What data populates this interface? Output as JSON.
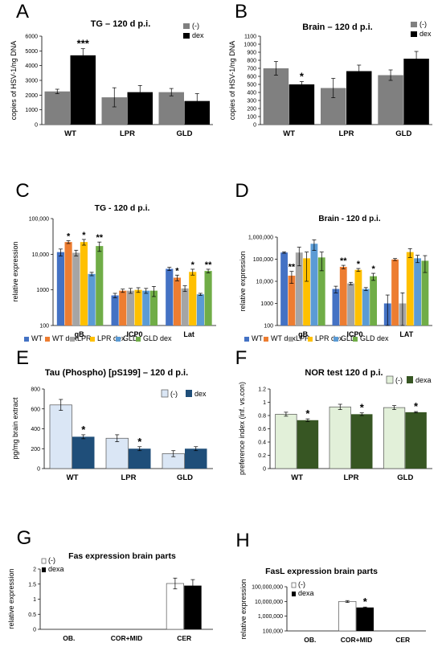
{
  "chart_data": [
    {
      "panel": "A",
      "type": "bar",
      "title": "TG – 120 d p.i.",
      "ylabel": "copies of HSV-1/ng DNA",
      "xlabel": "",
      "categories": [
        "WT",
        "LPR",
        "GLD"
      ],
      "series": [
        {
          "name": "(-)",
          "color": "#808080",
          "values": [
            2250,
            1850,
            2200
          ],
          "errors": [
            150,
            650,
            250
          ]
        },
        {
          "name": "dex",
          "color": "#000000",
          "values": [
            4700,
            2200,
            1600
          ],
          "errors": [
            450,
            450,
            500
          ]
        }
      ],
      "ylim": [
        0,
        6000
      ],
      "yticks": [
        0,
        1000,
        2000,
        3000,
        4000,
        5000,
        6000
      ],
      "scale": "linear",
      "ticklabels": [
        "0",
        "1000",
        "2000",
        "3000",
        "4000",
        "5000",
        "6000"
      ],
      "significance": [
        {
          "category": 0,
          "series": 1,
          "label": "***"
        }
      ],
      "legend": "top-right",
      "grid": false
    },
    {
      "panel": "B",
      "type": "bar",
      "title": "Brain – 120 d p.i.",
      "ylabel": "copies of HSV-1/ng DNA",
      "xlabel": "",
      "categories": [
        "WT",
        "LPR",
        "GLD"
      ],
      "series": [
        {
          "name": "(-)",
          "color": "#808080",
          "values": [
            700,
            455,
            615
          ],
          "errors": [
            85,
            120,
            65
          ]
        },
        {
          "name": "dex",
          "color": "#000000",
          "values": [
            500,
            665,
            820
          ],
          "errors": [
            35,
            75,
            90
          ]
        }
      ],
      "ylim": [
        0,
        1100
      ],
      "yticks": [
        0,
        100,
        200,
        300,
        400,
        500,
        600,
        700,
        800,
        900,
        1000,
        1100
      ],
      "scale": "linear",
      "ticklabels": [
        "0",
        "100",
        "200",
        "300",
        "400",
        "500",
        "600",
        "700",
        "800",
        "900",
        "1000",
        "1100"
      ],
      "significance": [
        {
          "category": 0,
          "series": 1,
          "label": "*"
        }
      ],
      "legend": "top-right",
      "grid": false
    },
    {
      "panel": "C",
      "type": "bar",
      "title": "TG - 120 d p.i.",
      "ylabel": "relative expression",
      "xlabel": "",
      "categories": [
        "gB.",
        "ICP0",
        "Lat"
      ],
      "series": [
        {
          "name": "WT",
          "color": "#4472c4",
          "values": [
            11500,
            700,
            3900
          ],
          "errors": [
            2500,
            100,
            400
          ]
        },
        {
          "name": "WT dex",
          "color": "#ed7d31",
          "values": [
            22000,
            950,
            2200
          ],
          "errors": [
            2000,
            100,
            400
          ]
        },
        {
          "name": "LPR",
          "color": "#a5a5a5",
          "values": [
            11000,
            950,
            1100
          ],
          "errors": [
            2000,
            150,
            200
          ]
        },
        {
          "name": "LPR dex",
          "color": "#ffc000",
          "values": [
            22000,
            1000,
            3200
          ],
          "errors": [
            4000,
            150,
            600
          ]
        },
        {
          "name": "GLD",
          "color": "#5b9bd5",
          "values": [
            2800,
            950,
            750
          ],
          "errors": [
            300,
            150,
            50
          ]
        },
        {
          "name": "GLD dex",
          "color": "#70ad47",
          "values": [
            17000,
            950,
            3400
          ],
          "errors": [
            5000,
            300,
            400
          ]
        }
      ],
      "ylim": [
        100,
        100000
      ],
      "yticks": [
        100,
        1000,
        10000,
        100000
      ],
      "scale": "log",
      "ticklabels": [
        "100",
        "1000",
        "10,000",
        "100,000"
      ],
      "significance": [
        {
          "category": 0,
          "series": 1,
          "label": "*"
        },
        {
          "category": 0,
          "series": 3,
          "label": "*"
        },
        {
          "category": 0,
          "series": 5,
          "label": "**"
        },
        {
          "category": 2,
          "series": 1,
          "label": "*"
        },
        {
          "category": 2,
          "series": 3,
          "label": "*"
        },
        {
          "category": 2,
          "series": 5,
          "label": "**"
        }
      ],
      "legend": "bottom",
      "grid": false
    },
    {
      "panel": "D",
      "type": "bar",
      "title": "Brain - 120 d p.i.",
      "ylabel": "relative expression",
      "xlabel": "",
      "categories": [
        "gB",
        "ICP0",
        "LAT"
      ],
      "series": [
        {
          "name": "WT",
          "color": "#4472c4",
          "values": [
            200000,
            4500,
            1000
          ],
          "errors": [
            15000,
            1500,
            1400
          ]
        },
        {
          "name": "WT dex",
          "color": "#ed7d31",
          "values": [
            18000,
            45000,
            97000
          ],
          "errors": [
            10000,
            8000,
            10000
          ]
        },
        {
          "name": "LPR",
          "color": "#a5a5a5",
          "values": [
            200000,
            8000,
            1000
          ],
          "errors": [
            150000,
            1000,
            2000
          ]
        },
        {
          "name": "LPR dex",
          "color": "#ffc000",
          "values": [
            110000,
            33000,
            210000
          ],
          "errors": [
            100000,
            5000,
            90000
          ]
        },
        {
          "name": "GLD",
          "color": "#5b9bd5",
          "values": [
            500000,
            4500,
            110000
          ],
          "errors": [
            250000,
            700,
            40000
          ]
        },
        {
          "name": "GLD dex",
          "color": "#70ad47",
          "values": [
            120000,
            17000,
            85000
          ],
          "errors": [
            90000,
            6000,
            60000
          ]
        }
      ],
      "ylim": [
        100,
        1000000
      ],
      "yticks": [
        100,
        1000,
        10000,
        100000,
        1000000
      ],
      "scale": "log",
      "ticklabels": [
        "100",
        "1000",
        "10,000",
        "100,000",
        "1,000,000"
      ],
      "significance": [
        {
          "category": 0,
          "series": 1,
          "label": "**"
        },
        {
          "category": 1,
          "series": 1,
          "label": "**"
        },
        {
          "category": 1,
          "series": 3,
          "label": "*"
        },
        {
          "category": 1,
          "series": 5,
          "label": "*"
        }
      ],
      "legend": "bottom",
      "grid": false
    },
    {
      "panel": "E",
      "type": "bar",
      "title": "Tau (Phospho) [pS199] – 120 d p.i.",
      "ylabel": "pg/mg brain extract",
      "xlabel": "",
      "categories": [
        "WT",
        "LPR",
        "GLD"
      ],
      "series": [
        {
          "name": "(-)",
          "color": "#dae6f5",
          "values": [
            640,
            305,
            150
          ],
          "errors": [
            55,
            35,
            30
          ]
        },
        {
          "name": "dex",
          "color": "#1f4e79",
          "values": [
            320,
            200,
            200
          ],
          "errors": [
            20,
            20,
            20
          ]
        }
      ],
      "ylim": [
        0,
        800
      ],
      "yticks": [
        0,
        200,
        400,
        600,
        800
      ],
      "scale": "linear",
      "ticklabels": [
        "0",
        "200",
        "400",
        "600",
        "800"
      ],
      "significance": [
        {
          "category": 0,
          "series": 1,
          "label": "*"
        },
        {
          "category": 1,
          "series": 1,
          "label": "*"
        }
      ],
      "legend": "top-right",
      "grid": false
    },
    {
      "panel": "F",
      "type": "bar",
      "title": "NOR test 120 d p.i.",
      "ylabel": "preference index (inf. vs.con)",
      "xlabel": "",
      "categories": [
        "WT",
        "LPR",
        "GLD"
      ],
      "series": [
        {
          "name": "(-)",
          "color": "#e2f0d9",
          "values": [
            0.82,
            0.93,
            0.92
          ],
          "errors": [
            0.03,
            0.04,
            0.03
          ]
        },
        {
          "name": "dexa",
          "color": "#375623",
          "values": [
            0.73,
            0.82,
            0.85
          ],
          "errors": [
            0.02,
            0.02,
            0.01
          ]
        }
      ],
      "ylim": [
        0,
        1.2
      ],
      "yticks": [
        0,
        0.2,
        0.4,
        0.6,
        0.8,
        1,
        1.2
      ],
      "scale": "linear",
      "ticklabels": [
        "0",
        "0.2",
        "0.4",
        "0.6",
        "0.8",
        "1",
        "1.2"
      ],
      "significance": [
        {
          "category": 0,
          "series": 1,
          "label": "*"
        },
        {
          "category": 1,
          "series": 1,
          "label": "*"
        },
        {
          "category": 2,
          "series": 1,
          "label": "*"
        }
      ],
      "legend": "top-right",
      "grid": false
    },
    {
      "panel": "G",
      "type": "bar",
      "title": "Fas expression brain parts",
      "ylabel": "relative expression",
      "xlabel": "",
      "categories": [
        "OB.",
        "COR+MID",
        "CER"
      ],
      "series": [
        {
          "name": "(-)",
          "color": "#ffffff",
          "values": [
            null,
            null,
            1.52
          ],
          "errors": [
            0,
            0,
            0.18
          ]
        },
        {
          "name": "dexa",
          "color": "#000000",
          "values": [
            null,
            null,
            1.45
          ],
          "errors": [
            0,
            0,
            0.2
          ]
        }
      ],
      "ylim": [
        0,
        2
      ],
      "yticks": [
        0,
        0.5,
        1,
        1.5,
        2
      ],
      "scale": "linear",
      "ticklabels": [
        "0",
        "0.5",
        "1",
        "1.5",
        "2"
      ],
      "significance": [],
      "legend": "top-left",
      "grid": false
    },
    {
      "panel": "H",
      "type": "bar",
      "title": "FasL expression brain parts",
      "ylabel": "relative expression",
      "xlabel": "",
      "categories": [
        "OB.",
        "COR+MID",
        "CER"
      ],
      "series": [
        {
          "name": "(-)",
          "color": "#ffffff",
          "values": [
            null,
            10000000,
            null
          ],
          "errors": [
            0,
            1500000,
            0
          ]
        },
        {
          "name": "dexa",
          "color": "#000000",
          "values": [
            null,
            3900000,
            null
          ],
          "errors": [
            0,
            300000,
            0
          ]
        }
      ],
      "ylim": [
        100000,
        100000000
      ],
      "yticks": [
        100000,
        1000000,
        10000000,
        100000000
      ],
      "scale": "log",
      "ticklabels": [
        "100,000",
        "1,000,000",
        "10,000,000",
        "100,000,000"
      ],
      "significance": [
        {
          "category": 1,
          "series": 1,
          "label": "*"
        }
      ],
      "legend": "top-left",
      "grid": false
    }
  ]
}
